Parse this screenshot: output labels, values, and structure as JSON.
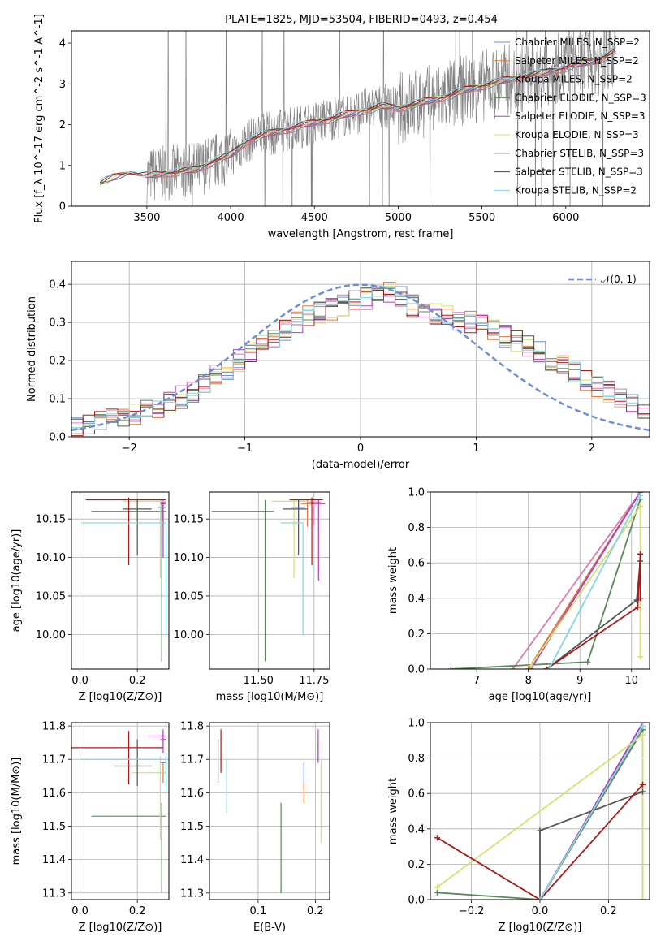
{
  "figure_title": "PLATE=1825, MJD=53504, FIBERID=0493, z=0.454",
  "colors": {
    "chabrier_miles": "#6d8fd8",
    "salpeter_miles": "#e07a3a",
    "kroupa_miles": "#e07ab0",
    "chabrier_elodie": "#5a8a5a",
    "salpeter_elodie": "#b040c0",
    "kroupa_elodie": "#d8e070",
    "chabrier_stelib": "#555555",
    "salpeter_stelib": "#b01818",
    "kroupa_stelib": "#80d8e0",
    "data_gray": "#808080",
    "normal_curve": "#6d8fd8",
    "grid": "#b0b0b0"
  },
  "chart_data": [
    {
      "id": "spectrum",
      "type": "line",
      "xlabel": "wavelength [Angstrom, rest frame]",
      "ylabel": "Flux [f_λ 10^-17 erg cm^-2 s^-1 A^-1]",
      "xlim": [
        3050,
        6500
      ],
      "ylim": [
        0,
        4.3
      ],
      "xticks": [
        "3500",
        "4000",
        "4500",
        "5000",
        "5500",
        "6000"
      ],
      "yticks": [
        "0",
        "1",
        "2",
        "3",
        "4"
      ],
      "legend": [
        "Chabrier MILES, N_SSP=2",
        "Salpeter MILES, N_SSP=2",
        "Kroupa MILES, N_SSP=2",
        "Chabrier ELODIE, N_SSP=3",
        "Salpeter ELODIE, N_SSP=3",
        "Kroupa ELODIE, N_SSP=3",
        "Chabrier STELIB, N_SSP=3",
        "Salpeter STELIB, N_SSP=3",
        "Kroupa STELIB, N_SSP=2"
      ],
      "continuum_model": {
        "x": [
          3220,
          3300,
          3400,
          3500,
          3600,
          3700,
          3800,
          3900,
          4000,
          4100,
          4200,
          4300,
          4400,
          4500,
          4600,
          4700,
          4800,
          4900,
          5000,
          5100,
          5200,
          5300,
          5400,
          5500,
          5600,
          5700,
          5800,
          5900,
          6000,
          6100,
          6200,
          6300
        ],
        "y": [
          0.55,
          0.7,
          0.8,
          0.75,
          0.8,
          0.85,
          0.9,
          1.1,
          1.25,
          1.6,
          1.75,
          1.85,
          1.95,
          2.05,
          2.15,
          2.25,
          2.35,
          2.45,
          2.4,
          2.5,
          2.6,
          2.7,
          2.85,
          2.95,
          3.05,
          3.15,
          3.2,
          3.3,
          3.4,
          3.5,
          3.6,
          3.8
        ]
      }
    },
    {
      "id": "residuals",
      "type": "step",
      "xlabel": "(data-model)/error",
      "ylabel": "Normed distribution",
      "xlim": [
        -2.5,
        2.5
      ],
      "ylim": [
        0,
        0.46
      ],
      "xticks": [
        "−2",
        "−1",
        "0",
        "1",
        "2"
      ],
      "yticks": [
        "0.0",
        "0.1",
        "0.2",
        "0.3",
        "0.4"
      ],
      "legend": [
        "𝒩(0, 1)"
      ],
      "histogram_envelope": {
        "x": [
          -2.5,
          -2.0,
          -1.5,
          -1.0,
          -0.5,
          0.0,
          0.3,
          0.5,
          1.0,
          1.5,
          2.0,
          2.5
        ],
        "y": [
          0.03,
          0.05,
          0.11,
          0.21,
          0.31,
          0.36,
          0.38,
          0.33,
          0.3,
          0.23,
          0.14,
          0.07
        ]
      }
    },
    {
      "id": "age-vs-Z",
      "type": "errorbar",
      "xlabel": "Z [log10(Z/Z⊙)]",
      "ylabel": "age  [log10(age/yr)]",
      "xlim": [
        -0.03,
        0.31
      ],
      "ylim": [
        9.955,
        10.185
      ],
      "xticks": [
        "0.0",
        "0.2"
      ],
      "yticks": [
        "10.00",
        "10.05",
        "10.10",
        "10.15"
      ],
      "points": [
        {
          "series": "chabrier_miles",
          "x": 0.287,
          "y": 10.165,
          "xerr": [
            0.017,
            0.013
          ],
          "yerr": [
            0.015,
            0.005
          ]
        },
        {
          "series": "salpeter_miles",
          "x": 0.29,
          "y": 10.17,
          "xerr": [
            0.01,
            0.01
          ],
          "yerr": [
            0.03,
            0.005
          ]
        },
        {
          "series": "kroupa_miles",
          "x": 0.29,
          "y": 10.172,
          "xerr": [
            0.01,
            0.01
          ],
          "yerr": [
            0.03,
            0.003
          ]
        },
        {
          "series": "chabrier_elodie",
          "x": 0.285,
          "y": 10.16,
          "xerr": [
            0.245,
            0.015
          ],
          "yerr": [
            0.195,
            0.015
          ]
        },
        {
          "series": "salpeter_elodie",
          "x": 0.29,
          "y": 10.17,
          "xerr": [
            0.01,
            0.01
          ],
          "yerr": [
            0.07,
            0.005
          ]
        },
        {
          "series": "kroupa_elodie",
          "x": 0.28,
          "y": 10.173,
          "xerr": [
            0.13,
            0.02
          ],
          "yerr": [
            0.1,
            0.003
          ]
        },
        {
          "series": "chabrier_stelib",
          "x": 0.2,
          "y": 10.163,
          "xerr": [
            0.05,
            0.05
          ],
          "yerr": [
            0.06,
            0.012
          ]
        },
        {
          "series": "salpeter_stelib",
          "x": 0.17,
          "y": 10.175,
          "xerr": [
            0.15,
            0.13
          ],
          "yerr": [
            0.085,
            0.003
          ]
        },
        {
          "series": "kroupa_stelib",
          "x": 0.3,
          "y": 10.145,
          "xerr": [
            0.295,
            0.0
          ],
          "yerr": [
            0.145,
            0.0
          ]
        }
      ]
    },
    {
      "id": "age-vs-mass",
      "type": "errorbar",
      "xlabel": "mass [log10(M/M⊙)]",
      "ylabel": "",
      "xlim": [
        11.28,
        11.82
      ],
      "ylim": [
        9.955,
        10.185
      ],
      "xticks": [
        "11.50",
        "11.75"
      ],
      "yticks": [
        "10.00",
        "10.05",
        "10.10",
        "10.15"
      ],
      "points": [
        {
          "series": "chabrier_miles",
          "x": 11.68,
          "y": 10.165,
          "xerr": [
            0.03,
            0.03
          ],
          "yerr": [
            0.015,
            0.005
          ]
        },
        {
          "series": "salpeter_miles",
          "x": 11.72,
          "y": 10.17,
          "xerr": [
            0.03,
            0.03
          ],
          "yerr": [
            0.03,
            0.005
          ]
        },
        {
          "series": "kroupa_miles",
          "x": 11.75,
          "y": 10.172,
          "xerr": [
            0.03,
            0.03
          ],
          "yerr": [
            0.03,
            0.003
          ]
        },
        {
          "series": "chabrier_elodie",
          "x": 11.53,
          "y": 10.16,
          "xerr": [
            0.24,
            0.04
          ],
          "yerr": [
            0.195,
            0.015
          ]
        },
        {
          "series": "salpeter_elodie",
          "x": 11.77,
          "y": 10.17,
          "xerr": [
            0.03,
            0.03
          ],
          "yerr": [
            0.1,
            0.005
          ]
        },
        {
          "series": "kroupa_elodie",
          "x": 11.66,
          "y": 10.173,
          "xerr": [
            0.1,
            0.1
          ],
          "yerr": [
            0.1,
            0.003
          ]
        },
        {
          "series": "chabrier_stelib",
          "x": 11.68,
          "y": 10.163,
          "xerr": [
            0.07,
            0.04
          ],
          "yerr": [
            0.06,
            0.012
          ]
        },
        {
          "series": "salpeter_stelib",
          "x": 11.74,
          "y": 10.175,
          "xerr": [
            0.1,
            0.05
          ],
          "yerr": [
            0.085,
            0.003
          ]
        },
        {
          "series": "kroupa_stelib",
          "x": 11.7,
          "y": 10.145,
          "xerr": [
            0.1,
            0.0
          ],
          "yerr": [
            0.145,
            0.0
          ]
        }
      ]
    },
    {
      "id": "mass-weight-vs-age",
      "type": "line",
      "xlabel": "age  [log10(age/yr)]",
      "ylabel": "mass weight",
      "xlim": [
        6.1,
        10.35
      ],
      "ylim": [
        0,
        1.0
      ],
      "xticks": [
        "7",
        "8",
        "9",
        "10"
      ],
      "yticks": [
        "0.0",
        "0.2",
        "0.4",
        "0.6",
        "0.8",
        "1.0"
      ],
      "series": [
        {
          "series": "chabrier_miles",
          "x": [
            8.0,
            10.17
          ],
          "y": [
            0.0,
            1.0
          ]
        },
        {
          "series": "salpeter_miles",
          "x": [
            8.0,
            10.17
          ],
          "y": [
            0.0,
            1.0
          ]
        },
        {
          "series": "kroupa_miles",
          "x": [
            7.7,
            10.17
          ],
          "y": [
            0.0,
            1.0
          ]
        },
        {
          "series": "chabrier_elodie",
          "x": [
            6.5,
            9.15,
            10.17
          ],
          "y": [
            0.0,
            0.04,
            0.96
          ]
        },
        {
          "series": "salpeter_elodie",
          "x": [
            8.05,
            10.17
          ],
          "y": [
            0.0,
            1.0
          ]
        },
        {
          "series": "kroupa_elodie",
          "x": [
            8.05,
            10.17,
            10.17
          ],
          "y": [
            0.02,
            0.92,
            0.07
          ]
        },
        {
          "series": "chabrier_stelib",
          "x": [
            8.35,
            10.1,
            10.17
          ],
          "y": [
            0.0,
            0.39,
            0.61
          ]
        },
        {
          "series": "salpeter_stelib",
          "x": [
            8.35,
            10.12,
            10.17,
            10.17
          ],
          "y": [
            0.0,
            0.35,
            0.65,
            0.4
          ]
        },
        {
          "series": "kroupa_stelib",
          "x": [
            8.4,
            10.17
          ],
          "y": [
            0.0,
            0.98
          ]
        }
      ]
    },
    {
      "id": "mass-vs-Z",
      "type": "errorbar",
      "xlabel": "Z [log10(Z/Z⊙)]",
      "ylabel": "mass [log10(M/M⊙)]",
      "xlim": [
        -0.03,
        0.31
      ],
      "ylim": [
        11.28,
        11.81
      ],
      "xticks": [
        "0.0",
        "0.2"
      ],
      "yticks": [
        "11.3",
        "11.4",
        "11.5",
        "11.6",
        "11.7",
        "11.8"
      ],
      "points": [
        {
          "series": "chabrier_miles",
          "x": 0.3,
          "y": 11.69,
          "xerr": [
            0.02,
            0.0
          ],
          "yerr": [
            0.03,
            0.03
          ]
        },
        {
          "series": "salpeter_miles",
          "x": 0.29,
          "y": 11.66,
          "xerr": [
            0.01,
            0.01
          ],
          "yerr": [
            0.03,
            0.03
          ]
        },
        {
          "series": "kroupa_miles",
          "x": 0.29,
          "y": 11.76,
          "xerr": [
            0.01,
            0.01
          ],
          "yerr": [
            0.02,
            0.02
          ]
        },
        {
          "series": "chabrier_elodie",
          "x": 0.285,
          "y": 11.53,
          "xerr": [
            0.245,
            0.015
          ],
          "yerr": [
            0.23,
            0.04
          ]
        },
        {
          "series": "salpeter_elodie",
          "x": 0.29,
          "y": 11.77,
          "xerr": [
            0.05,
            0.01
          ],
          "yerr": [
            0.05,
            0.02
          ]
        },
        {
          "series": "kroupa_elodie",
          "x": 0.28,
          "y": 11.66,
          "xerr": [
            0.1,
            0.02
          ],
          "yerr": [
            0.2,
            0.05
          ]
        },
        {
          "series": "chabrier_stelib",
          "x": 0.2,
          "y": 11.68,
          "xerr": [
            0.08,
            0.05
          ],
          "yerr": [
            0.06,
            0.08
          ]
        },
        {
          "series": "salpeter_stelib",
          "x": 0.17,
          "y": 11.735,
          "xerr": [
            0.2,
            0.12
          ],
          "yerr": [
            0.11,
            0.05
          ]
        },
        {
          "series": "kroupa_stelib",
          "x": 0.3,
          "y": 11.7,
          "xerr": [
            0.3,
            0.0
          ],
          "yerr": [
            0.1,
            0.0
          ]
        }
      ]
    },
    {
      "id": "mass-vs-ebv",
      "type": "errorbar",
      "xlabel": "E(B-V)",
      "ylabel": "",
      "xlim": [
        0.015,
        0.225
      ],
      "ylim": [
        11.28,
        11.81
      ],
      "xticks": [
        "0.1",
        "0.2"
      ],
      "yticks": [
        "11.3",
        "11.4",
        "11.5",
        "11.6",
        "11.7",
        "11.8"
      ],
      "points": [
        {
          "series": "chabrier_miles",
          "x": 0.18,
          "y": 11.65,
          "xerr": [
            0,
            0
          ],
          "yerr": [
            0.04,
            0.04
          ]
        },
        {
          "series": "salpeter_miles",
          "x": 0.18,
          "y": 11.6,
          "xerr": [
            0,
            0
          ],
          "yerr": [
            0.03,
            0.03
          ]
        },
        {
          "series": "kroupa_miles",
          "x": 0.205,
          "y": 11.72,
          "xerr": [
            0,
            0
          ],
          "yerr": [
            0.03,
            0.03
          ]
        },
        {
          "series": "chabrier_elodie",
          "x": 0.14,
          "y": 11.43,
          "xerr": [
            0,
            0
          ],
          "yerr": [
            0.13,
            0.14
          ]
        },
        {
          "series": "salpeter_elodie",
          "x": 0.205,
          "y": 11.73,
          "xerr": [
            0,
            0
          ],
          "yerr": [
            0.04,
            0.06
          ]
        },
        {
          "series": "kroupa_elodie",
          "x": 0.21,
          "y": 11.58,
          "xerr": [
            0,
            0
          ],
          "yerr": [
            0.13,
            0.12
          ]
        },
        {
          "series": "chabrier_stelib",
          "x": 0.03,
          "y": 11.69,
          "xerr": [
            0,
            0
          ],
          "yerr": [
            0.06,
            0.07
          ]
        },
        {
          "series": "salpeter_stelib",
          "x": 0.035,
          "y": 11.73,
          "xerr": [
            0,
            0
          ],
          "yerr": [
            0.07,
            0.06
          ]
        },
        {
          "series": "kroupa_stelib",
          "x": 0.045,
          "y": 11.62,
          "xerr": [
            0,
            0
          ],
          "yerr": [
            0.08,
            0.08
          ]
        }
      ]
    },
    {
      "id": "mass-weight-vs-Z",
      "type": "line",
      "xlabel": "Z [log10(Z/Z⊙)]",
      "ylabel": "mass weight",
      "xlim": [
        -0.32,
        0.32
      ],
      "ylim": [
        0,
        1.0
      ],
      "xticks": [
        "−0.2",
        "0.0",
        "0.2"
      ],
      "yticks": [
        "0.0",
        "0.2",
        "0.4",
        "0.6",
        "0.8",
        "1.0"
      ],
      "series": [
        {
          "series": "chabrier_miles",
          "x": [
            0.0,
            0.3
          ],
          "y": [
            0.0,
            0.96
          ]
        },
        {
          "series": "salpeter_miles",
          "x": [
            0.0,
            0.3
          ],
          "y": [
            0.0,
            0.96
          ]
        },
        {
          "series": "kroupa_miles",
          "x": [
            0.0,
            0.3
          ],
          "y": [
            0.0,
            0.96
          ]
        },
        {
          "series": "chabrier_elodie",
          "x": [
            -0.3,
            0.0,
            0.3,
            0.3
          ],
          "y": [
            0.04,
            0.0,
            0.96,
            0.0
          ]
        },
        {
          "series": "salpeter_elodie",
          "x": [
            0.0,
            0.3
          ],
          "y": [
            0.0,
            1.0
          ]
        },
        {
          "series": "kroupa_elodie",
          "x": [
            -0.3,
            0.3,
            0.3
          ],
          "y": [
            0.07,
            0.93,
            0.0
          ]
        },
        {
          "series": "chabrier_stelib",
          "x": [
            0.0,
            0.0,
            0.3
          ],
          "y": [
            0.0,
            0.39,
            0.61
          ]
        },
        {
          "series": "salpeter_stelib",
          "x": [
            -0.3,
            0.0,
            0.3
          ],
          "y": [
            0.35,
            0.0,
            0.65
          ]
        },
        {
          "series": "kroupa_stelib",
          "x": [
            0.0,
            0.3
          ],
          "y": [
            0.0,
            0.98
          ]
        }
      ]
    }
  ]
}
